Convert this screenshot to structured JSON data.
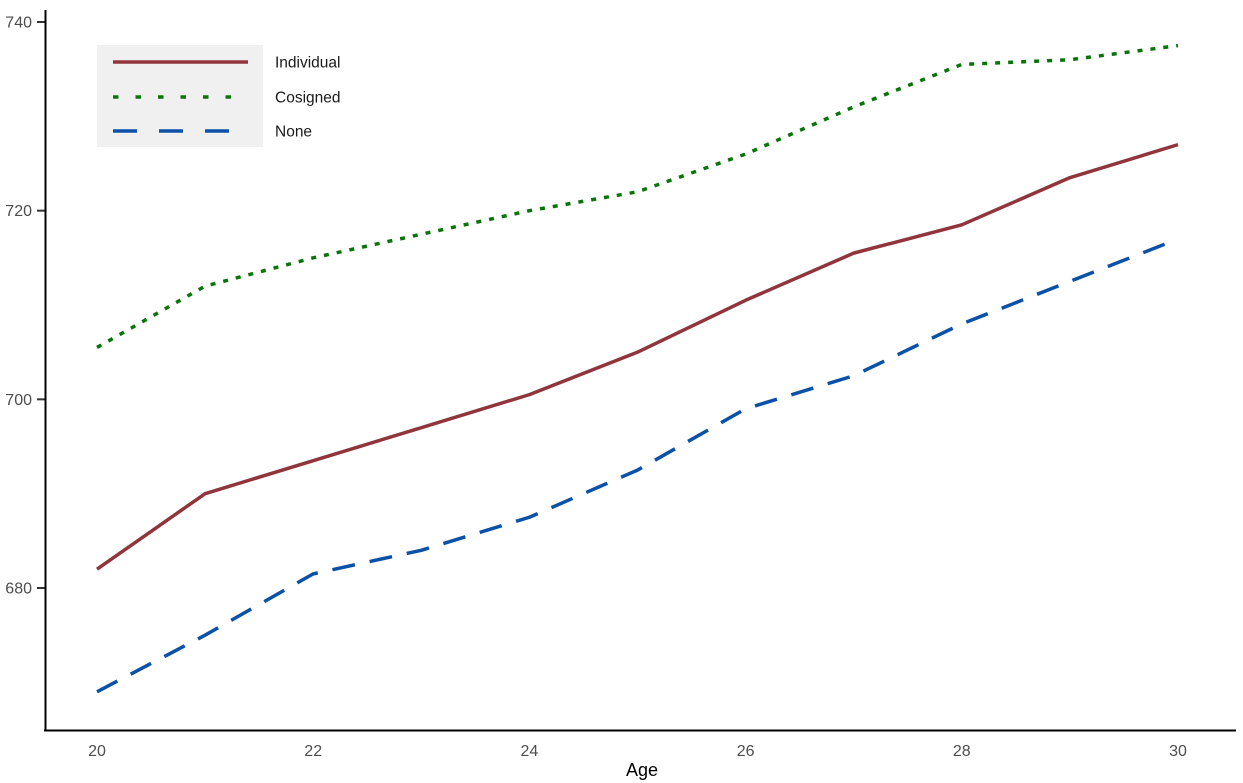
{
  "chart_data": {
    "type": "line",
    "title": "",
    "xlabel": "Age",
    "ylabel": "",
    "x": [
      20,
      21,
      22,
      23,
      24,
      25,
      26,
      27,
      28,
      29,
      30
    ],
    "series": [
      {
        "name": "Individual",
        "color": "#90353B",
        "line_style": "solid",
        "values": [
          682,
          690,
          693.5,
          697,
          700.5,
          705,
          710.5,
          715.5,
          718.5,
          723.5,
          727
        ]
      },
      {
        "name": "Cosigned",
        "color": "#087508",
        "line_style": "dotted",
        "values": [
          705.5,
          712,
          715,
          717.5,
          720,
          722,
          726,
          731,
          735.5,
          736,
          737.5
        ]
      },
      {
        "name": "None",
        "color": "#0B51A8",
        "line_style": "dashed",
        "values": [
          669,
          675,
          681.5,
          684,
          687.5,
          692.5,
          699,
          702.5,
          708,
          712.5,
          717
        ]
      }
    ],
    "x_ticks": [
      20,
      22,
      24,
      26,
      28,
      30
    ],
    "y_ticks": [
      680,
      700,
      720,
      740
    ],
    "xlim": [
      19.5,
      30.5
    ],
    "ylim": [
      665,
      741.5
    ],
    "grid": false,
    "legend_position": "top-left"
  },
  "styles": {
    "axis_line_color": "#000000",
    "tick_label_color": "#4d4d4d",
    "legend_key_background": "#f0f0f0",
    "plot_background": "#ffffff"
  }
}
